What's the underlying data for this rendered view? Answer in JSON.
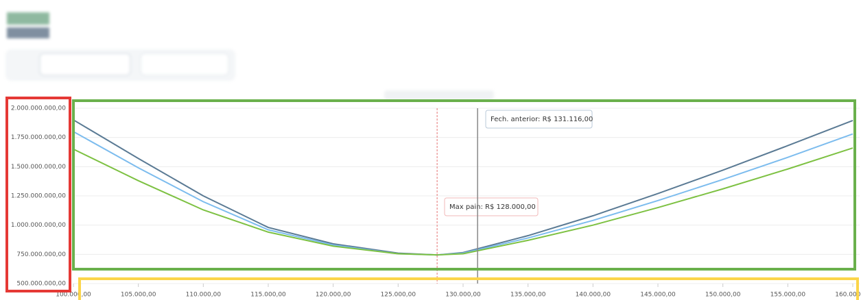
{
  "chart_data": {
    "type": "line",
    "x": [
      100000,
      105000,
      110000,
      115000,
      120000,
      125000,
      128000,
      130000,
      135000,
      140000,
      145000,
      150000,
      155000,
      160000
    ],
    "series": [
      {
        "color": "#5a7a94",
        "values": [
          1900000000,
          1570000000,
          1250000000,
          980000000,
          840000000,
          760000000,
          745000000,
          765000000,
          910000000,
          1080000000,
          1270000000,
          1470000000,
          1680000000,
          1895000000
        ]
      },
      {
        "color": "#7cbcee",
        "values": [
          1800000000,
          1490000000,
          1200000000,
          960000000,
          830000000,
          755000000,
          745000000,
          760000000,
          890000000,
          1040000000,
          1210000000,
          1390000000,
          1580000000,
          1780000000
        ]
      },
      {
        "color": "#7dc142",
        "values": [
          1650000000,
          1380000000,
          1130000000,
          940000000,
          820000000,
          755000000,
          745000000,
          755000000,
          870000000,
          1000000000,
          1150000000,
          1310000000,
          1480000000,
          1660000000
        ]
      }
    ],
    "xlim": [
      100000,
      160000
    ],
    "xticks": [
      {
        "value": 100000,
        "label": "100.000,00"
      },
      {
        "value": 105000,
        "label": "105.000,00"
      },
      {
        "value": 110000,
        "label": "110.000,00"
      },
      {
        "value": 115000,
        "label": "115.000,00"
      },
      {
        "value": 120000,
        "label": "120.000,00"
      },
      {
        "value": 125000,
        "label": "125.000,00"
      },
      {
        "value": 130000,
        "label": "130.000,00"
      },
      {
        "value": 135000,
        "label": "135.000,00"
      },
      {
        "value": 140000,
        "label": "140.000,00"
      },
      {
        "value": 145000,
        "label": "145.000,00"
      },
      {
        "value": 150000,
        "label": "150.000,00"
      },
      {
        "value": 155000,
        "label": "155.000,00"
      },
      {
        "value": 160000,
        "label": "160.000,00"
      }
    ],
    "ylim": [
      500000000,
      2000000000
    ],
    "yticks": [
      {
        "value": 500000000,
        "label": "500.000.000,00"
      },
      {
        "value": 750000000,
        "label": "750.000.000,00"
      },
      {
        "value": 1000000000,
        "label": "1.000.000.000,00"
      },
      {
        "value": 1250000000,
        "label": "1.250.000.000,00"
      },
      {
        "value": 1500000000,
        "label": "1.500.000.000,00"
      },
      {
        "value": 1750000000,
        "label": "1.750.000.000,00"
      },
      {
        "value": 2000000000,
        "label": "2.000.000.000,00"
      }
    ],
    "grid": true,
    "annotations": [
      {
        "value": 128000,
        "label": "Max pain: R$ 128.000,00",
        "color": "#e57373"
      },
      {
        "value": 131116,
        "label": "Fech. anterior: R$ 131.116,00",
        "color": "#888888"
      }
    ]
  }
}
